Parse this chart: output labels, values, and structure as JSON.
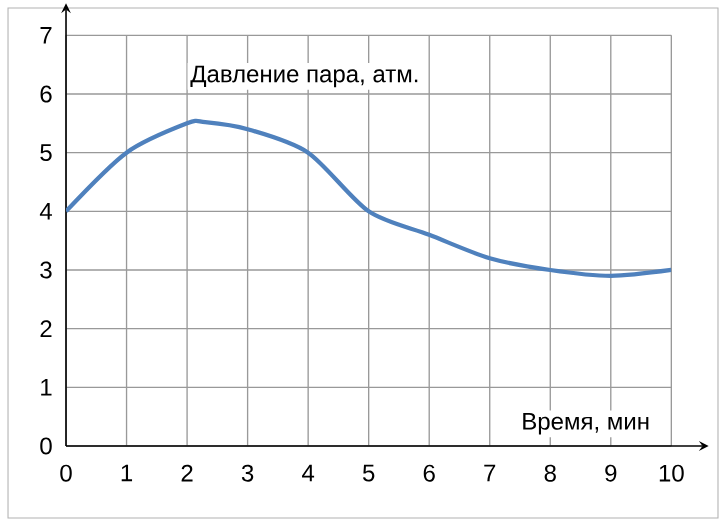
{
  "chart_data": {
    "type": "line",
    "xlabel": "Время, мин",
    "ylabel": "Давление пара, атм.",
    "series": [
      {
        "color": "#4f81bd",
        "x": [
          0,
          1,
          2,
          2.3,
          3,
          4,
          5,
          6,
          7,
          8,
          9,
          10
        ],
        "values": [
          4,
          5,
          5.5,
          5.52,
          5.4,
          5,
          4,
          3.6,
          3.2,
          3,
          2.9,
          3
        ]
      }
    ],
    "xlim": [
      0,
      10
    ],
    "ylim": [
      0,
      7
    ],
    "xticks": [
      0,
      1,
      2,
      3,
      4,
      5,
      6,
      7,
      8,
      9,
      10
    ],
    "yticks": [
      0,
      1,
      2,
      3,
      4,
      5,
      6,
      7
    ],
    "grid": true,
    "marker": "none",
    "line_style": "solid"
  }
}
